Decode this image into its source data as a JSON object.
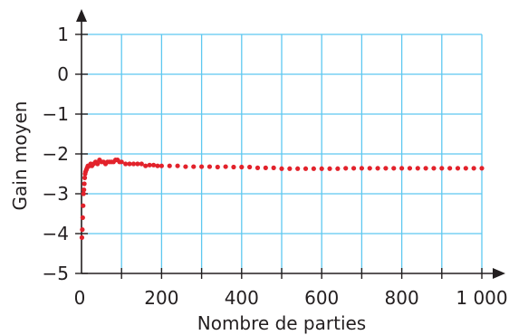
{
  "chart_data": {
    "type": "scatter",
    "xlabel": "Nombre de parties",
    "ylabel": "Gain moyen",
    "xlim": [
      0,
      1000
    ],
    "ylim": [
      -5,
      1
    ],
    "xticks": [
      0,
      200,
      400,
      600,
      800,
      1000
    ],
    "xtick_labels": [
      "0",
      "200",
      "400",
      "600",
      "800",
      "1 000"
    ],
    "yticks": [
      -5,
      -4,
      -3,
      -2,
      -1,
      0,
      1
    ],
    "ytick_labels": [
      "−5",
      "−4",
      "−3",
      "−2",
      "−1",
      "0",
      "1"
    ],
    "grid": true,
    "grid_step_x": 100,
    "grid_step_y": 1,
    "colors": {
      "series": "#e2222b",
      "grid": "#5ec8f0",
      "axis": "#231f20"
    },
    "series": [
      {
        "x": [
          1,
          2,
          3,
          4,
          5,
          6,
          7,
          8,
          9,
          10,
          12,
          14,
          16,
          18,
          20,
          23,
          26,
          30,
          35,
          40,
          45,
          50,
          55,
          60,
          65,
          70,
          75,
          80,
          85,
          90,
          95,
          100,
          110,
          120,
          130,
          140,
          150,
          160,
          170,
          180,
          190,
          200,
          220,
          240,
          260,
          280,
          300,
          320,
          340,
          360,
          380,
          400,
          420,
          440,
          460,
          480,
          500,
          520,
          540,
          560,
          580,
          600,
          620,
          640,
          660,
          680,
          700,
          720,
          740,
          760,
          780,
          800,
          820,
          840,
          860,
          880,
          900,
          920,
          940,
          960,
          980,
          1000
        ],
        "y": [
          -4.1,
          -3.9,
          -3.6,
          -3.3,
          -3.0,
          -2.9,
          -2.75,
          -2.6,
          -2.5,
          -2.45,
          -2.4,
          -2.35,
          -2.3,
          -2.3,
          -2.3,
          -2.25,
          -2.3,
          -2.25,
          -2.2,
          -2.25,
          -2.15,
          -2.2,
          -2.2,
          -2.25,
          -2.2,
          -2.2,
          -2.2,
          -2.2,
          -2.15,
          -2.15,
          -2.2,
          -2.2,
          -2.25,
          -2.25,
          -2.25,
          -2.25,
          -2.25,
          -2.3,
          -2.28,
          -2.28,
          -2.3,
          -2.3,
          -2.3,
          -2.3,
          -2.32,
          -2.32,
          -2.32,
          -2.32,
          -2.33,
          -2.32,
          -2.33,
          -2.33,
          -2.33,
          -2.35,
          -2.35,
          -2.35,
          -2.37,
          -2.37,
          -2.37,
          -2.37,
          -2.37,
          -2.37,
          -2.37,
          -2.37,
          -2.36,
          -2.36,
          -2.36,
          -2.36,
          -2.36,
          -2.36,
          -2.36,
          -2.36,
          -2.36,
          -2.36,
          -2.36,
          -2.36,
          -2.36,
          -2.36,
          -2.36,
          -2.36,
          -2.36,
          -2.36
        ]
      }
    ]
  }
}
